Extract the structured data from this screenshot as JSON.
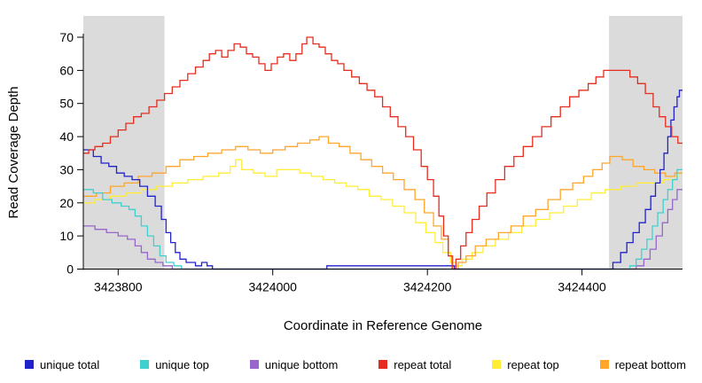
{
  "chart_data": {
    "type": "line",
    "step": true,
    "title": "",
    "xlabel": "Coordinate in Reference Genome",
    "ylabel": "Read Coverage Depth",
    "xlim": [
      3423755,
      3424530
    ],
    "ylim": [
      0,
      70
    ],
    "x_ticks": [
      3423800,
      3424000,
      3424200,
      3424400
    ],
    "y_ticks": [
      0,
      10,
      20,
      30,
      40,
      50,
      60,
      70
    ],
    "grid": false,
    "legend_position": "bottom",
    "shaded_regions": [
      {
        "x0": 3423755,
        "x1": 3423860,
        "color": "#DBDBDB"
      },
      {
        "x0": 3424435,
        "x1": 3424530,
        "color": "#DBDBDB"
      }
    ],
    "series": [
      {
        "name": "unique total",
        "color": "#2222CC",
        "points": [
          [
            3423755,
            36
          ],
          [
            3423768,
            34
          ],
          [
            3423778,
            32
          ],
          [
            3423788,
            31
          ],
          [
            3423798,
            29
          ],
          [
            3423808,
            28
          ],
          [
            3423818,
            27
          ],
          [
            3423828,
            25
          ],
          [
            3423838,
            22
          ],
          [
            3423848,
            19
          ],
          [
            3423856,
            15
          ],
          [
            3423862,
            11
          ],
          [
            3423868,
            8
          ],
          [
            3423874,
            5
          ],
          [
            3423880,
            3
          ],
          [
            3423888,
            2
          ],
          [
            3423900,
            1
          ],
          [
            3423908,
            2
          ],
          [
            3423915,
            1
          ],
          [
            3423922,
            0
          ],
          [
            3424070,
            1
          ],
          [
            3424235,
            0
          ],
          [
            3424440,
            2
          ],
          [
            3424450,
            5
          ],
          [
            3424458,
            8
          ],
          [
            3424466,
            11
          ],
          [
            3424474,
            14
          ],
          [
            3424482,
            18
          ],
          [
            3424489,
            22
          ],
          [
            3424495,
            26
          ],
          [
            3424501,
            30
          ],
          [
            3424506,
            35
          ],
          [
            3424511,
            40
          ],
          [
            3424515,
            45
          ],
          [
            3424519,
            49
          ],
          [
            3424523,
            52
          ],
          [
            3424526,
            54
          ]
        ]
      },
      {
        "name": "unique top",
        "color": "#40D0D0",
        "points": [
          [
            3423755,
            24
          ],
          [
            3423768,
            23
          ],
          [
            3423780,
            21
          ],
          [
            3423792,
            20
          ],
          [
            3423804,
            19
          ],
          [
            3423814,
            18
          ],
          [
            3423822,
            16
          ],
          [
            3423830,
            13
          ],
          [
            3423838,
            10
          ],
          [
            3423846,
            7
          ],
          [
            3423854,
            4
          ],
          [
            3423862,
            2
          ],
          [
            3423872,
            1
          ],
          [
            3423882,
            0
          ],
          [
            3424462,
            1
          ],
          [
            3424470,
            3
          ],
          [
            3424477,
            6
          ],
          [
            3424484,
            9
          ],
          [
            3424491,
            13
          ],
          [
            3424498,
            17
          ],
          [
            3424505,
            21
          ],
          [
            3424511,
            24
          ],
          [
            3424517,
            27
          ],
          [
            3424523,
            30
          ]
        ]
      },
      {
        "name": "unique bottom",
        "color": "#9966CC",
        "points": [
          [
            3423755,
            13
          ],
          [
            3423770,
            12
          ],
          [
            3423785,
            11
          ],
          [
            3423800,
            10
          ],
          [
            3423812,
            9
          ],
          [
            3423822,
            7
          ],
          [
            3423830,
            5
          ],
          [
            3423838,
            3
          ],
          [
            3423848,
            2
          ],
          [
            3423858,
            1
          ],
          [
            3423870,
            0
          ],
          [
            3424470,
            1
          ],
          [
            3424480,
            3
          ],
          [
            3424488,
            6
          ],
          [
            3424496,
            10
          ],
          [
            3424504,
            14
          ],
          [
            3424511,
            18
          ],
          [
            3424517,
            21
          ],
          [
            3424523,
            24
          ]
        ]
      },
      {
        "name": "repeat total",
        "color": "#E62C1E",
        "points": [
          [
            3423755,
            35
          ],
          [
            3423762,
            36
          ],
          [
            3423770,
            37
          ],
          [
            3423780,
            38
          ],
          [
            3423790,
            40
          ],
          [
            3423800,
            42
          ],
          [
            3423810,
            44
          ],
          [
            3423820,
            46
          ],
          [
            3423830,
            47
          ],
          [
            3423840,
            49
          ],
          [
            3423850,
            51
          ],
          [
            3423860,
            53
          ],
          [
            3423870,
            55
          ],
          [
            3423880,
            57
          ],
          [
            3423890,
            59
          ],
          [
            3423900,
            61
          ],
          [
            3423910,
            63
          ],
          [
            3423918,
            65
          ],
          [
            3423926,
            66
          ],
          [
            3423934,
            64
          ],
          [
            3423942,
            66
          ],
          [
            3423950,
            68
          ],
          [
            3423958,
            67
          ],
          [
            3423966,
            65
          ],
          [
            3423974,
            64
          ],
          [
            3423982,
            62
          ],
          [
            3423990,
            60
          ],
          [
            3423998,
            62
          ],
          [
            3424006,
            64
          ],
          [
            3424014,
            65
          ],
          [
            3424022,
            63
          ],
          [
            3424030,
            65
          ],
          [
            3424038,
            68
          ],
          [
            3424044,
            70
          ],
          [
            3424052,
            68
          ],
          [
            3424060,
            67
          ],
          [
            3424068,
            65
          ],
          [
            3424076,
            63
          ],
          [
            3424084,
            62
          ],
          [
            3424092,
            60
          ],
          [
            3424102,
            58
          ],
          [
            3424112,
            56
          ],
          [
            3424122,
            54
          ],
          [
            3424132,
            52
          ],
          [
            3424142,
            49
          ],
          [
            3424152,
            46
          ],
          [
            3424162,
            43
          ],
          [
            3424172,
            40
          ],
          [
            3424182,
            36
          ],
          [
            3424192,
            31
          ],
          [
            3424200,
            27
          ],
          [
            3424208,
            22
          ],
          [
            3424215,
            16
          ],
          [
            3424221,
            10
          ],
          [
            3424227,
            4
          ],
          [
            3424232,
            0
          ],
          [
            3424237,
            3
          ],
          [
            3424243,
            7
          ],
          [
            3424250,
            11
          ],
          [
            3424258,
            15
          ],
          [
            3424267,
            19
          ],
          [
            3424277,
            23
          ],
          [
            3424288,
            27
          ],
          [
            3424300,
            31
          ],
          [
            3424312,
            34
          ],
          [
            3424324,
            37
          ],
          [
            3424336,
            40
          ],
          [
            3424348,
            43
          ],
          [
            3424360,
            46
          ],
          [
            3424372,
            49
          ],
          [
            3424384,
            52
          ],
          [
            3424396,
            54
          ],
          [
            3424408,
            56
          ],
          [
            3424418,
            58
          ],
          [
            3424428,
            60
          ],
          [
            3424452,
            60
          ],
          [
            3424462,
            58
          ],
          [
            3424472,
            56
          ],
          [
            3424482,
            53
          ],
          [
            3424492,
            49
          ],
          [
            3424500,
            46
          ],
          [
            3424508,
            43
          ],
          [
            3424516,
            40
          ],
          [
            3424524,
            38
          ]
        ]
      },
      {
        "name": "repeat top",
        "color": "#FFEE33",
        "points": [
          [
            3423755,
            20
          ],
          [
            3423770,
            21
          ],
          [
            3423790,
            22
          ],
          [
            3423810,
            23
          ],
          [
            3423830,
            24
          ],
          [
            3423850,
            25
          ],
          [
            3423870,
            26
          ],
          [
            3423890,
            27
          ],
          [
            3423910,
            28
          ],
          [
            3423930,
            29
          ],
          [
            3423945,
            31
          ],
          [
            3423952,
            33
          ],
          [
            3423960,
            30
          ],
          [
            3423975,
            29
          ],
          [
            3423990,
            28
          ],
          [
            3424005,
            30
          ],
          [
            3424020,
            30
          ],
          [
            3424035,
            29
          ],
          [
            3424050,
            28
          ],
          [
            3424065,
            27
          ],
          [
            3424080,
            26
          ],
          [
            3424095,
            25
          ],
          [
            3424110,
            24
          ],
          [
            3424125,
            22
          ],
          [
            3424140,
            21
          ],
          [
            3424155,
            19
          ],
          [
            3424170,
            17
          ],
          [
            3424185,
            14
          ],
          [
            3424198,
            11
          ],
          [
            3424210,
            8
          ],
          [
            3424220,
            5
          ],
          [
            3424230,
            2
          ],
          [
            3424237,
            1
          ],
          [
            3424245,
            3
          ],
          [
            3424258,
            5
          ],
          [
            3424272,
            7
          ],
          [
            3424288,
            9
          ],
          [
            3424305,
            11
          ],
          [
            3424322,
            13
          ],
          [
            3424340,
            15
          ],
          [
            3424358,
            17
          ],
          [
            3424376,
            19
          ],
          [
            3424394,
            21
          ],
          [
            3424412,
            23
          ],
          [
            3424430,
            24
          ],
          [
            3424450,
            25
          ],
          [
            3424470,
            26
          ],
          [
            3424490,
            26
          ],
          [
            3424505,
            27
          ],
          [
            3424518,
            28
          ],
          [
            3424525,
            29
          ]
        ]
      },
      {
        "name": "repeat bottom",
        "color": "#FFA52C",
        "points": [
          [
            3423755,
            22
          ],
          [
            3423772,
            23
          ],
          [
            3423790,
            25
          ],
          [
            3423808,
            26
          ],
          [
            3423826,
            28
          ],
          [
            3423844,
            29
          ],
          [
            3423862,
            31
          ],
          [
            3423880,
            33
          ],
          [
            3423898,
            34
          ],
          [
            3423916,
            35
          ],
          [
            3423934,
            36
          ],
          [
            3423952,
            37
          ],
          [
            3423968,
            36
          ],
          [
            3423984,
            35
          ],
          [
            3424000,
            36
          ],
          [
            3424016,
            37
          ],
          [
            3424032,
            38
          ],
          [
            3424048,
            39
          ],
          [
            3424060,
            40
          ],
          [
            3424072,
            38
          ],
          [
            3424086,
            37
          ],
          [
            3424100,
            35
          ],
          [
            3424114,
            33
          ],
          [
            3424128,
            31
          ],
          [
            3424142,
            29
          ],
          [
            3424156,
            27
          ],
          [
            3424170,
            24
          ],
          [
            3424184,
            21
          ],
          [
            3424196,
            17
          ],
          [
            3424208,
            13
          ],
          [
            3424218,
            9
          ],
          [
            3424227,
            4
          ],
          [
            3424233,
            0
          ],
          [
            3424240,
            2
          ],
          [
            3424250,
            4
          ],
          [
            3424262,
            7
          ],
          [
            3424276,
            9
          ],
          [
            3424292,
            11
          ],
          [
            3424308,
            13
          ],
          [
            3424324,
            16
          ],
          [
            3424340,
            18
          ],
          [
            3424356,
            21
          ],
          [
            3424372,
            24
          ],
          [
            3424388,
            26
          ],
          [
            3424402,
            28
          ],
          [
            3424414,
            30
          ],
          [
            3424426,
            32
          ],
          [
            3424436,
            34
          ],
          [
            3424452,
            33
          ],
          [
            3424466,
            31
          ],
          [
            3424480,
            30
          ],
          [
            3424494,
            29
          ],
          [
            3424508,
            28
          ],
          [
            3424520,
            29
          ]
        ]
      }
    ]
  }
}
